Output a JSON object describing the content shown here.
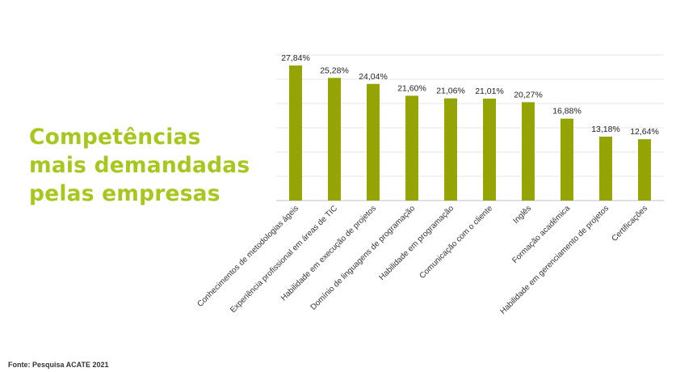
{
  "title_lines": [
    "Competências",
    "mais demandadas",
    "pelas empresas"
  ],
  "source": "Fonte: Pesquisa ACATE  2021",
  "colors": {
    "bar": "#93a403",
    "title": "#a6c81e",
    "grid": "#e6e6e6",
    "axis": "#bfbfbf"
  },
  "chart_data": {
    "type": "bar",
    "categories": [
      "Conhecimentos de metodologias ágeis",
      "Experiência profissional em áreas de TIC",
      "Habilidade em execução de projetos",
      "Domínio de linguagens de programação",
      "Habilidade em programação",
      "Comunicação com o cliente",
      "Inglês",
      "Formação acadêmica",
      "Habilidade em gerenciamento de projetos",
      "Certificações"
    ],
    "values": [
      27.84,
      25.28,
      24.04,
      21.6,
      21.06,
      21.01,
      20.27,
      16.88,
      13.18,
      12.64
    ],
    "data_labels": [
      "27,84%",
      "25,28%",
      "24,04%",
      "21,60%",
      "21,06%",
      "21,01%",
      "20,27%",
      "16,88%",
      "13,18%",
      "12,64%"
    ],
    "ylim": [
      0,
      30
    ],
    "grid": true,
    "legend": "none"
  }
}
